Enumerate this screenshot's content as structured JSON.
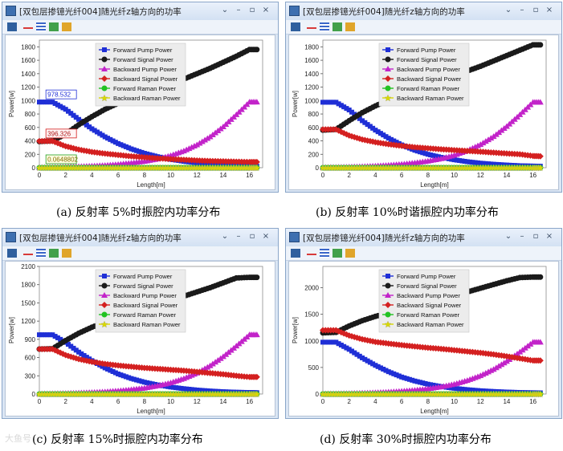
{
  "window_title": "[双包层掺镱光纤004]随光纤z轴方向的功率",
  "window_buttons": [
    "⌄",
    "–",
    "▫",
    "×"
  ],
  "watermark": "大鱼号",
  "legend_entries": [
    "Forward Pump Power",
    "Forward Signal Power",
    "Backward Pump Power",
    "Backward Signal Power",
    "Forward Raman Power",
    "Backward Raman Power"
  ],
  "colors": {
    "Forward Pump Power": "#1f2fd6",
    "Forward Signal Power": "#1a1a1a",
    "Backward Pump Power": "#c223c9",
    "Backward Signal Power": "#d42020",
    "Forward Raman Power": "#22c222",
    "Backward Raman Power": "#d8d800"
  },
  "panels": [
    {
      "caption_letter": "(a)",
      "caption_text": "反射率 5%时振腔内功率分布",
      "annotations": [
        "978.532",
        "396.326",
        "0.0648802"
      ]
    },
    {
      "caption_letter": "(b)",
      "caption_text": "反射率 10%时谐振腔内功率分布",
      "annotations": []
    },
    {
      "caption_letter": "(c)",
      "caption_text": "反射率 15%时振腔内功率分布",
      "annotations": []
    },
    {
      "caption_letter": "(d)",
      "caption_text": "反射率 30%时振腔内功率分布",
      "annotations": []
    }
  ],
  "chart_data": [
    {
      "type": "line",
      "xlabel": "Length[m]",
      "ylabel": "Power[w]",
      "xlim": [
        0,
        17
      ],
      "ylim": [
        0,
        1900
      ],
      "xticks": [
        0,
        2,
        4,
        6,
        8,
        10,
        12,
        14,
        16
      ],
      "yticks": [
        0,
        200,
        400,
        600,
        800,
        1000,
        1200,
        1400,
        1600,
        1800
      ],
      "legend_position": "top-center",
      "x": [
        0,
        1,
        2,
        3,
        4,
        5,
        6,
        7,
        8,
        9,
        10,
        11,
        12,
        13,
        14,
        15,
        16,
        16.7
      ],
      "series": [
        {
          "name": "Forward Pump Power",
          "values": [
            978,
            978,
            870,
            720,
            580,
            460,
            360,
            280,
            215,
            165,
            125,
            95,
            72,
            55,
            42,
            32,
            25,
            22
          ]
        },
        {
          "name": "Forward Signal Power",
          "values": [
            390,
            400,
            500,
            640,
            760,
            870,
            960,
            1040,
            1110,
            1180,
            1250,
            1320,
            1400,
            1480,
            1570,
            1660,
            1760,
            1760
          ]
        },
        {
          "name": "Backward Pump Power",
          "values": [
            5,
            8,
            12,
            18,
            25,
            35,
            50,
            70,
            95,
            130,
            180,
            250,
            340,
            460,
            610,
            790,
            978,
            978
          ]
        },
        {
          "name": "Backward Signal Power",
          "values": [
            396,
            396,
            320,
            270,
            235,
            210,
            190,
            170,
            155,
            140,
            128,
            118,
            108,
            100,
            95,
            90,
            85,
            85
          ]
        },
        {
          "name": "Forward Raman Power",
          "values": [
            0,
            0,
            0,
            0,
            0,
            0,
            0,
            0,
            0,
            0,
            0,
            0,
            0,
            0,
            0,
            0,
            0,
            0
          ]
        },
        {
          "name": "Backward Raman Power",
          "values": [
            0,
            0,
            0,
            0,
            0,
            0,
            0,
            0,
            0,
            0,
            0,
            0,
            0,
            0,
            0,
            0,
            0,
            0
          ]
        }
      ]
    },
    {
      "type": "line",
      "xlabel": "Length[m]",
      "ylabel": "Power[w]",
      "xlim": [
        0,
        17
      ],
      "ylim": [
        0,
        1900
      ],
      "xticks": [
        0,
        2,
        4,
        6,
        8,
        10,
        12,
        14,
        16
      ],
      "yticks": [
        0,
        200,
        400,
        600,
        800,
        1000,
        1200,
        1400,
        1600,
        1800
      ],
      "legend_position": "top-center",
      "x": [
        0,
        1,
        2,
        3,
        4,
        5,
        6,
        7,
        8,
        9,
        10,
        11,
        12,
        13,
        14,
        15,
        16,
        16.7
      ],
      "series": [
        {
          "name": "Forward Pump Power",
          "values": [
            975,
            975,
            860,
            700,
            560,
            440,
            340,
            260,
            200,
            155,
            118,
            90,
            68,
            52,
            40,
            30,
            25,
            22
          ]
        },
        {
          "name": "Forward Signal Power",
          "values": [
            560,
            570,
            700,
            820,
            920,
            1010,
            1090,
            1160,
            1230,
            1300,
            1370,
            1440,
            1510,
            1590,
            1670,
            1750,
            1830,
            1830
          ]
        },
        {
          "name": "Backward Pump Power",
          "values": [
            5,
            8,
            12,
            18,
            26,
            37,
            52,
            72,
            98,
            135,
            185,
            255,
            345,
            465,
            615,
            790,
            975,
            975
          ]
        },
        {
          "name": "Backward Signal Power",
          "values": [
            570,
            570,
            480,
            420,
            380,
            350,
            325,
            305,
            290,
            275,
            262,
            250,
            238,
            225,
            212,
            200,
            175,
            170
          ]
        },
        {
          "name": "Forward Raman Power",
          "values": [
            0,
            0,
            0,
            0,
            0,
            0,
            0,
            0,
            0,
            0,
            0,
            0,
            0,
            0,
            0,
            0,
            0,
            0
          ]
        },
        {
          "name": "Backward Raman Power",
          "values": [
            0,
            0,
            0,
            0,
            0,
            0,
            0,
            0,
            0,
            0,
            0,
            0,
            0,
            0,
            0,
            0,
            0,
            0
          ]
        }
      ]
    },
    {
      "type": "line",
      "xlabel": "Length[m]",
      "ylabel": "Power[w]",
      "xlim": [
        0,
        17
      ],
      "ylim": [
        0,
        2100
      ],
      "xticks": [
        0,
        2,
        4,
        6,
        8,
        10,
        12,
        14,
        16
      ],
      "yticks": [
        0,
        300,
        600,
        900,
        1200,
        1500,
        1800,
        2100
      ],
      "legend_position": "top-center",
      "x": [
        0,
        1,
        2,
        3,
        4,
        5,
        6,
        7,
        8,
        9,
        10,
        11,
        12,
        13,
        14,
        15,
        16,
        16.7
      ],
      "series": [
        {
          "name": "Forward Pump Power",
          "values": [
            975,
            975,
            850,
            690,
            550,
            430,
            330,
            255,
            195,
            150,
            115,
            88,
            66,
            50,
            38,
            30,
            25,
            22
          ]
        },
        {
          "name": "Forward Signal Power",
          "values": [
            740,
            745,
            880,
            1000,
            1100,
            1180,
            1260,
            1330,
            1400,
            1470,
            1540,
            1610,
            1680,
            1750,
            1830,
            1910,
            1920,
            1920
          ]
        },
        {
          "name": "Backward Pump Power",
          "values": [
            5,
            8,
            12,
            18,
            26,
            37,
            52,
            72,
            98,
            135,
            185,
            255,
            345,
            465,
            615,
            790,
            975,
            975
          ]
        },
        {
          "name": "Backward Signal Power",
          "values": [
            740,
            740,
            640,
            575,
            530,
            495,
            470,
            450,
            430,
            415,
            400,
            385,
            365,
            345,
            325,
            300,
            280,
            280
          ]
        },
        {
          "name": "Forward Raman Power",
          "values": [
            0,
            0,
            0,
            0,
            0,
            0,
            0,
            0,
            0,
            0,
            0,
            0,
            0,
            0,
            0,
            0,
            0,
            0
          ]
        },
        {
          "name": "Backward Raman Power",
          "values": [
            0,
            0,
            0,
            0,
            0,
            0,
            0,
            0,
            0,
            0,
            0,
            0,
            0,
            0,
            0,
            0,
            0,
            0
          ]
        }
      ]
    },
    {
      "type": "line",
      "xlabel": "Length[m]",
      "ylabel": "Power[w]",
      "xlim": [
        0,
        17
      ],
      "ylim": [
        0,
        2400
      ],
      "xticks": [
        0,
        2,
        4,
        6,
        8,
        10,
        12,
        14,
        16
      ],
      "yticks": [
        0,
        500,
        1000,
        1500,
        2000
      ],
      "legend_position": "top-center",
      "x": [
        0,
        1,
        2,
        3,
        4,
        5,
        6,
        7,
        8,
        9,
        10,
        11,
        12,
        13,
        14,
        15,
        16,
        16.7
      ],
      "series": [
        {
          "name": "Forward Pump Power",
          "values": [
            975,
            975,
            840,
            680,
            540,
            420,
            320,
            245,
            185,
            140,
            108,
            82,
            62,
            48,
            37,
            29,
            24,
            22
          ]
        },
        {
          "name": "Forward Signal Power",
          "values": [
            1150,
            1160,
            1280,
            1380,
            1460,
            1530,
            1600,
            1660,
            1730,
            1790,
            1850,
            1920,
            1990,
            2060,
            2130,
            2190,
            2200,
            2200
          ]
        },
        {
          "name": "Backward Pump Power",
          "values": [
            5,
            8,
            12,
            18,
            26,
            37,
            52,
            72,
            98,
            135,
            185,
            255,
            345,
            465,
            615,
            790,
            975,
            975
          ]
        },
        {
          "name": "Backward Signal Power",
          "values": [
            1200,
            1200,
            1100,
            1030,
            980,
            950,
            920,
            895,
            870,
            850,
            825,
            800,
            775,
            745,
            710,
            670,
            630,
            630
          ]
        },
        {
          "name": "Forward Raman Power",
          "values": [
            0,
            0,
            0,
            0,
            0,
            0,
            0,
            0,
            0,
            0,
            0,
            0,
            0,
            0,
            0,
            0,
            0,
            0
          ]
        },
        {
          "name": "Backward Raman Power",
          "values": [
            0,
            0,
            0,
            0,
            0,
            0,
            0,
            0,
            0,
            0,
            0,
            0,
            0,
            0,
            0,
            0,
            0,
            0
          ]
        }
      ]
    }
  ]
}
